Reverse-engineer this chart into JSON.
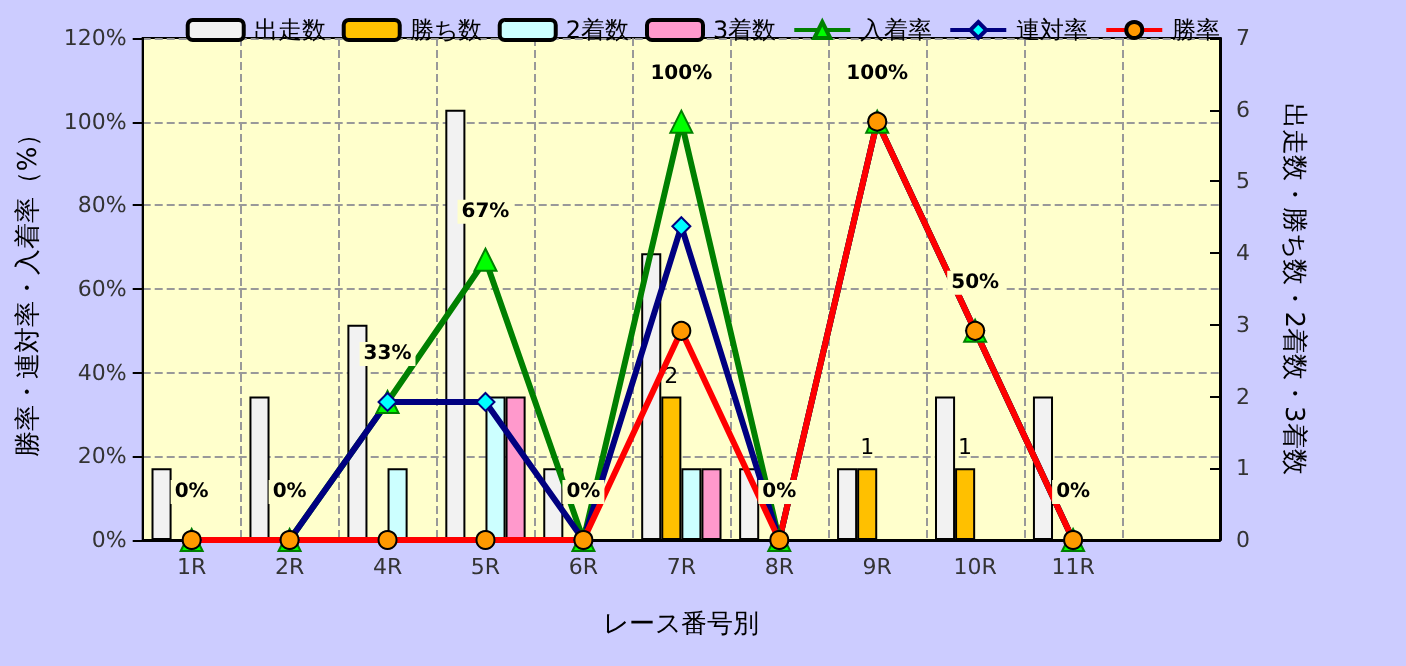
{
  "chart_data": {
    "type": "bar",
    "xlabel": "レース番号別",
    "ylabel": "勝率・連対率・入着率（%）",
    "y2label": "出走数・勝ち数・2着数・3着数",
    "categories": [
      "1R",
      "2R",
      "4R",
      "5R",
      "6R",
      "7R",
      "8R",
      "9R",
      "10R",
      "11R",
      null
    ],
    "series": [
      {
        "name": "出走数",
        "axis": "y2",
        "color": "#f2f2f2",
        "values": [
          1,
          2,
          3,
          6,
          1,
          4,
          1,
          1,
          2,
          2,
          null
        ]
      },
      {
        "name": "勝ち数",
        "axis": "y2",
        "color": "#ffc000",
        "values": [
          0,
          0,
          0,
          0,
          0,
          2,
          0,
          1,
          1,
          0,
          null
        ],
        "value_labels": [
          null,
          null,
          null,
          null,
          null,
          "2",
          null,
          "1",
          "1",
          null,
          null
        ]
      },
      {
        "name": "2着数",
        "axis": "y2",
        "color": "#ccffff",
        "values": [
          0,
          0,
          1,
          2,
          0,
          1,
          0,
          0,
          0,
          0,
          null
        ]
      },
      {
        "name": "3着数",
        "axis": "y2",
        "color": "#ff99cc",
        "values": [
          0,
          0,
          0,
          2,
          0,
          1,
          0,
          0,
          0,
          0,
          null
        ]
      },
      {
        "name": "入着率",
        "type": "line",
        "marker": "triangle",
        "color": "#008000",
        "values": [
          0,
          0,
          33,
          67,
          0,
          100,
          0,
          100,
          50,
          0,
          null
        ],
        "value_labels": [
          "0%",
          "0%",
          "33%",
          "67%",
          "0%",
          "100%",
          "0%",
          "100%",
          "50%",
          "0%",
          null
        ]
      },
      {
        "name": "連対率",
        "type": "line",
        "marker": "diamond",
        "color": "#000080",
        "values": [
          0,
          0,
          33,
          33,
          0,
          75,
          0,
          100,
          50,
          0,
          null
        ]
      },
      {
        "name": "勝率",
        "type": "line",
        "marker": "circle",
        "color": "#ff0000",
        "values": [
          0,
          0,
          0,
          0,
          0,
          50,
          0,
          100,
          50,
          0,
          null
        ]
      }
    ],
    "ylim": [
      0,
      120
    ],
    "yticks": [
      {
        "value": 0,
        "label": "0%"
      },
      {
        "value": 20,
        "label": "20%"
      },
      {
        "value": 40,
        "label": "40%"
      },
      {
        "value": 60,
        "label": "60%"
      },
      {
        "value": 80,
        "label": "80%"
      },
      {
        "value": 100,
        "label": "100%"
      },
      {
        "value": 120,
        "label": "120%"
      }
    ],
    "y2lim": [
      0,
      7
    ],
    "y2ticks": [
      0,
      1,
      2,
      3,
      4,
      5,
      6,
      7
    ],
    "grid": true,
    "legend": "top",
    "line_style": "solid"
  }
}
